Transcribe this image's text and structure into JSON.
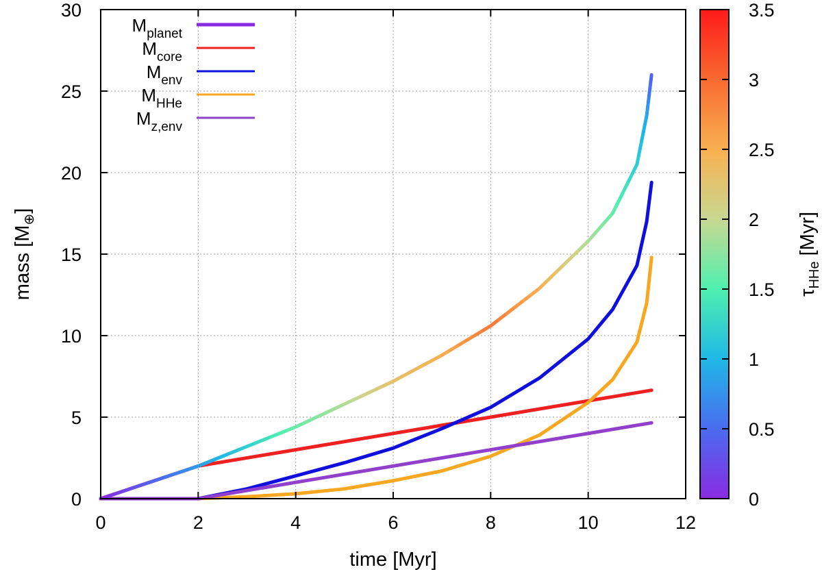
{
  "chart_data": {
    "type": "line",
    "xlabel": "time [Myr]",
    "ylabel": "mass [M",
    "ylabel_symbol": "⊕",
    "ylabel_suffix": "]",
    "xlim": [
      0,
      12
    ],
    "ylim": [
      0,
      30
    ],
    "xticks": [
      0,
      2,
      4,
      6,
      8,
      10,
      12
    ],
    "yticks": [
      0,
      5,
      10,
      15,
      20,
      25,
      30
    ],
    "grid": true,
    "legend_position": "top-left",
    "colorbar": {
      "label": "τ",
      "label_sub": "HHe",
      "label_suffix": " [Myr]",
      "range": [
        0,
        3.5
      ],
      "ticks": [
        0,
        0.5,
        1,
        1.5,
        2,
        2.5,
        3,
        3.5
      ],
      "colormap": [
        "#8a2be2",
        "#4a6cf0",
        "#1fb8e6",
        "#4ff0b0",
        "#c8d890",
        "#f8b050",
        "#f86a30",
        "#ff1a1a"
      ]
    },
    "series": [
      {
        "name": "M",
        "name_sub": "planet",
        "color": "#8a2be2",
        "colored_by_colorbar": true,
        "x": [
          0,
          1,
          2,
          3,
          4,
          5,
          6,
          7,
          8,
          9,
          10,
          10.5,
          11,
          11.2,
          11.3
        ],
        "values": [
          0,
          1,
          2,
          3.2,
          4.4,
          5.8,
          7.2,
          8.8,
          10.6,
          12.9,
          15.8,
          17.5,
          20.5,
          23.5,
          26
        ],
        "tau": [
          0,
          0.4,
          0.8,
          1.2,
          1.6,
          1.9,
          2.3,
          2.5,
          2.9,
          2.5,
          1.9,
          1.6,
          1.2,
          0.9,
          0.4
        ]
      },
      {
        "name": "M",
        "name_sub": "core",
        "color": "#ee2020",
        "x": [
          0,
          2,
          11.3
        ],
        "values": [
          0,
          2,
          6.65
        ]
      },
      {
        "name": "M",
        "name_sub": "env",
        "color": "#1010dd",
        "x": [
          0,
          2,
          3,
          4,
          5,
          6,
          7,
          8,
          9,
          10,
          10.5,
          11,
          11.2,
          11.3
        ],
        "values": [
          0,
          0,
          0.6,
          1.4,
          2.2,
          3.1,
          4.3,
          5.6,
          7.4,
          9.8,
          11.6,
          14.3,
          17,
          19.4
        ]
      },
      {
        "name": "M",
        "name_sub": "HHe",
        "color": "#f8a820",
        "x": [
          0,
          2,
          3,
          4,
          5,
          6,
          7,
          8,
          9,
          10,
          10.5,
          11,
          11.2,
          11.3
        ],
        "values": [
          0,
          0,
          0.12,
          0.3,
          0.6,
          1.1,
          1.7,
          2.6,
          3.9,
          5.9,
          7.3,
          9.6,
          12,
          14.8
        ]
      },
      {
        "name": "M",
        "name_sub": "z,env",
        "color": "#9040cc",
        "x": [
          0,
          2,
          11.3
        ],
        "values": [
          0,
          0,
          4.65
        ]
      }
    ]
  }
}
